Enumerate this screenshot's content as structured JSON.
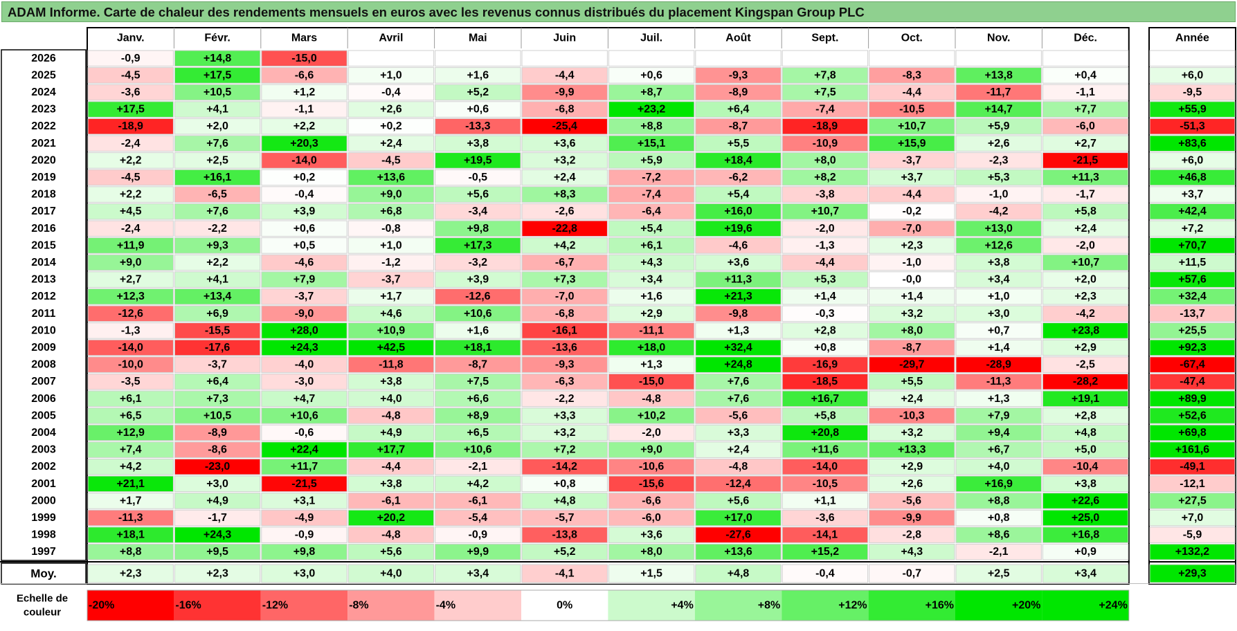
{
  "title": "ADAM Informe. Carte de chaleur des rendements mensuels en euros avec les revenus connus distribués du placement Kingspan Group PLC",
  "chart_data": {
    "type": "heatmap",
    "columns": [
      "Janv.",
      "Févr.",
      "Mars",
      "Avril",
      "Mai",
      "Juin",
      "Juil.",
      "Août",
      "Sept.",
      "Oct.",
      "Nov.",
      "Déc."
    ],
    "annual_header": "Année",
    "rows": [
      {
        "year": "2026",
        "values": [
          "-0,9",
          "+14,8",
          "-15,0",
          "",
          "",
          "",
          "",
          "",
          "",
          "",
          "",
          ""
        ],
        "annual": ""
      },
      {
        "year": "2025",
        "values": [
          "-4,5",
          "+17,5",
          "-6,6",
          "+1,0",
          "+1,6",
          "-4,4",
          "+0,6",
          "-9,3",
          "+7,8",
          "-8,3",
          "+13,8",
          "+0,4"
        ],
        "annual": "+6,0"
      },
      {
        "year": "2024",
        "values": [
          "-3,6",
          "+10,5",
          "+1,2",
          "-0,4",
          "+5,2",
          "-9,9",
          "+8,7",
          "-8,9",
          "+7,5",
          "-4,4",
          "-11,7",
          "-1,1"
        ],
        "annual": "-9,5"
      },
      {
        "year": "2023",
        "values": [
          "+17,5",
          "+4,1",
          "-1,1",
          "+2,6",
          "+0,6",
          "-6,8",
          "+23,2",
          "+6,4",
          "-7,4",
          "-10,5",
          "+14,7",
          "+7,7"
        ],
        "annual": "+55,9"
      },
      {
        "year": "2022",
        "values": [
          "-18,9",
          "+2,0",
          "+2,2",
          "+0,2",
          "-13,3",
          "-25,4",
          "+8,8",
          "-8,7",
          "-18,9",
          "+10,7",
          "+5,9",
          "-6,0"
        ],
        "annual": "-51,3"
      },
      {
        "year": "2021",
        "values": [
          "-2,4",
          "+7,6",
          "+20,3",
          "+2,4",
          "+3,8",
          "+3,6",
          "+15,1",
          "+5,5",
          "-10,9",
          "+15,9",
          "+2,6",
          "+2,7"
        ],
        "annual": "+83,6"
      },
      {
        "year": "2020",
        "values": [
          "+2,2",
          "+2,5",
          "-14,0",
          "-4,5",
          "+19,5",
          "+3,2",
          "+5,9",
          "+18,4",
          "+8,0",
          "-3,7",
          "-2,3",
          "-21,5"
        ],
        "annual": "+6,0"
      },
      {
        "year": "2019",
        "values": [
          "-4,5",
          "+16,1",
          "+0,2",
          "+13,6",
          "-0,5",
          "+2,4",
          "-7,2",
          "-6,2",
          "+8,2",
          "+3,7",
          "+5,3",
          "+11,3"
        ],
        "annual": "+46,8"
      },
      {
        "year": "2018",
        "values": [
          "+2,2",
          "-6,5",
          "-0,4",
          "+9,0",
          "+5,6",
          "+8,3",
          "-7,4",
          "+5,4",
          "-3,8",
          "-4,4",
          "-1,0",
          "-1,7"
        ],
        "annual": "+3,7"
      },
      {
        "year": "2017",
        "values": [
          "+4,5",
          "+7,6",
          "+3,9",
          "+6,8",
          "-3,4",
          "-2,6",
          "-6,4",
          "+16,0",
          "+10,7",
          "-0,2",
          "-4,2",
          "+5,8"
        ],
        "annual": "+42,4"
      },
      {
        "year": "2016",
        "values": [
          "-2,4",
          "-2,2",
          "+0,6",
          "-0,8",
          "+9,8",
          "-22,8",
          "+5,4",
          "+19,6",
          "-2,0",
          "-7,0",
          "+13,0",
          "+2,4"
        ],
        "annual": "+7,2"
      },
      {
        "year": "2015",
        "values": [
          "+11,9",
          "+9,3",
          "+0,5",
          "+1,0",
          "+17,3",
          "+4,2",
          "+6,1",
          "-4,6",
          "-1,3",
          "+2,3",
          "+12,6",
          "-2,0"
        ],
        "annual": "+70,7"
      },
      {
        "year": "2014",
        "values": [
          "+9,0",
          "+2,2",
          "-4,6",
          "-1,2",
          "-3,2",
          "-6,7",
          "+4,3",
          "+3,6",
          "-4,4",
          "-1,0",
          "+3,8",
          "+10,7"
        ],
        "annual": "+11,5"
      },
      {
        "year": "2013",
        "values": [
          "+2,7",
          "+4,1",
          "+7,9",
          "-3,7",
          "+3,9",
          "+7,3",
          "+3,4",
          "+11,3",
          "+5,3",
          "-0,0",
          "+3,4",
          "+2,0"
        ],
        "annual": "+57,6"
      },
      {
        "year": "2012",
        "values": [
          "+12,3",
          "+13,4",
          "-3,7",
          "+1,7",
          "-12,6",
          "-7,0",
          "+1,6",
          "+21,3",
          "+1,4",
          "+1,4",
          "+1,0",
          "+2,3"
        ],
        "annual": "+32,4"
      },
      {
        "year": "2011",
        "values": [
          "-12,6",
          "+6,9",
          "-9,0",
          "+4,6",
          "+10,6",
          "-6,8",
          "+2,9",
          "-9,8",
          "-0,3",
          "+3,2",
          "+3,0",
          "-4,2"
        ],
        "annual": "-13,7"
      },
      {
        "year": "2010",
        "values": [
          "-1,3",
          "-15,5",
          "+28,0",
          "+10,9",
          "+1,6",
          "-16,1",
          "-11,1",
          "+1,3",
          "+2,8",
          "+8,0",
          "+0,7",
          "+23,8"
        ],
        "annual": "+25,5"
      },
      {
        "year": "2009",
        "values": [
          "-14,0",
          "-17,6",
          "+24,3",
          "+42,5",
          "+18,1",
          "-13,6",
          "+18,0",
          "+32,4",
          "+0,8",
          "-8,7",
          "+1,4",
          "+2,9"
        ],
        "annual": "+92,3"
      },
      {
        "year": "2008",
        "values": [
          "-10,0",
          "-3,7",
          "-4,0",
          "-11,8",
          "-8,7",
          "-9,3",
          "+1,3",
          "+24,8",
          "-16,9",
          "-29,7",
          "-28,9",
          "-2,5"
        ],
        "annual": "-67,4"
      },
      {
        "year": "2007",
        "values": [
          "-3,5",
          "+6,4",
          "-3,0",
          "+3,8",
          "+7,5",
          "-6,3",
          "-15,0",
          "+7,6",
          "-18,5",
          "+5,5",
          "-11,3",
          "-28,2"
        ],
        "annual": "-47,4"
      },
      {
        "year": "2006",
        "values": [
          "+6,1",
          "+7,3",
          "+4,7",
          "+4,0",
          "+6,6",
          "-2,2",
          "-4,8",
          "+7,6",
          "+16,7",
          "+2,4",
          "+1,3",
          "+19,1"
        ],
        "annual": "+89,9"
      },
      {
        "year": "2005",
        "values": [
          "+6,5",
          "+10,5",
          "+10,6",
          "-4,8",
          "+8,9",
          "+3,3",
          "+10,2",
          "-5,6",
          "+5,8",
          "-10,3",
          "+7,9",
          "+2,8"
        ],
        "annual": "+52,6"
      },
      {
        "year": "2004",
        "values": [
          "+12,9",
          "-8,9",
          "-0,6",
          "+4,9",
          "+6,5",
          "+3,2",
          "-2,0",
          "+3,3",
          "+20,8",
          "+3,2",
          "+9,4",
          "+4,8"
        ],
        "annual": "+69,8"
      },
      {
        "year": "2003",
        "values": [
          "+7,4",
          "-8,6",
          "+22,4",
          "+17,7",
          "+10,6",
          "+7,2",
          "+9,0",
          "+2,4",
          "+11,6",
          "+13,3",
          "+6,7",
          "+5,0"
        ],
        "annual": "+161,6"
      },
      {
        "year": "2002",
        "values": [
          "+4,2",
          "-23,0",
          "+11,7",
          "-4,4",
          "-2,1",
          "-14,2",
          "-10,6",
          "-4,8",
          "-14,0",
          "+2,9",
          "+4,0",
          "-10,4"
        ],
        "annual": "-49,1"
      },
      {
        "year": "2001",
        "values": [
          "+21,1",
          "+3,0",
          "-21,5",
          "+3,8",
          "+4,2",
          "+0,8",
          "-15,6",
          "-12,4",
          "-10,5",
          "+2,6",
          "+16,9",
          "+3,8"
        ],
        "annual": "-12,1"
      },
      {
        "year": "2000",
        "values": [
          "+1,7",
          "+4,9",
          "+3,1",
          "-6,1",
          "-6,1",
          "+4,8",
          "-6,6",
          "+5,6",
          "+1,1",
          "-5,6",
          "+8,8",
          "+22,6"
        ],
        "annual": "+27,5"
      },
      {
        "year": "1999",
        "values": [
          "-11,3",
          "-1,7",
          "-4,9",
          "+20,2",
          "-5,4",
          "-5,7",
          "-6,0",
          "+17,0",
          "-3,6",
          "-9,9",
          "+0,8",
          "+25,0"
        ],
        "annual": "+7,0"
      },
      {
        "year": "1998",
        "values": [
          "+18,1",
          "+24,3",
          "-0,9",
          "-4,8",
          "-0,9",
          "-13,8",
          "+3,6",
          "-27,6",
          "-14,1",
          "-2,8",
          "+8,6",
          "+16,8"
        ],
        "annual": "-5,9"
      },
      {
        "year": "1997",
        "values": [
          "+8,8",
          "+9,5",
          "+9,8",
          "+5,6",
          "+9,9",
          "+5,2",
          "+8,0",
          "+13,6",
          "+15,2",
          "+4,3",
          "-2,1",
          "+0,9"
        ],
        "annual": "+132,2"
      }
    ],
    "average": {
      "label": "Moy.",
      "values": [
        "+2,3",
        "+2,3",
        "+3,0",
        "+4,0",
        "+3,4",
        "-4,1",
        "+1,5",
        "+4,8",
        "-0,4",
        "-0,7",
        "+2,5",
        "+3,4"
      ],
      "annual": "+29,3"
    },
    "scale": {
      "label_line1": "Echelle de",
      "label_line2": "couleur",
      "stops": [
        "-20%",
        "-16%",
        "-12%",
        "-8%",
        "-4%",
        "0%",
        "+4%",
        "+8%",
        "+12%",
        "+16%",
        "+20%",
        "+24%"
      ]
    },
    "colors": {
      "negative_max": "#ff0000",
      "neutral": "#ffffff",
      "positive_max": "#00e600",
      "title_bg": "#8fd08f"
    }
  }
}
